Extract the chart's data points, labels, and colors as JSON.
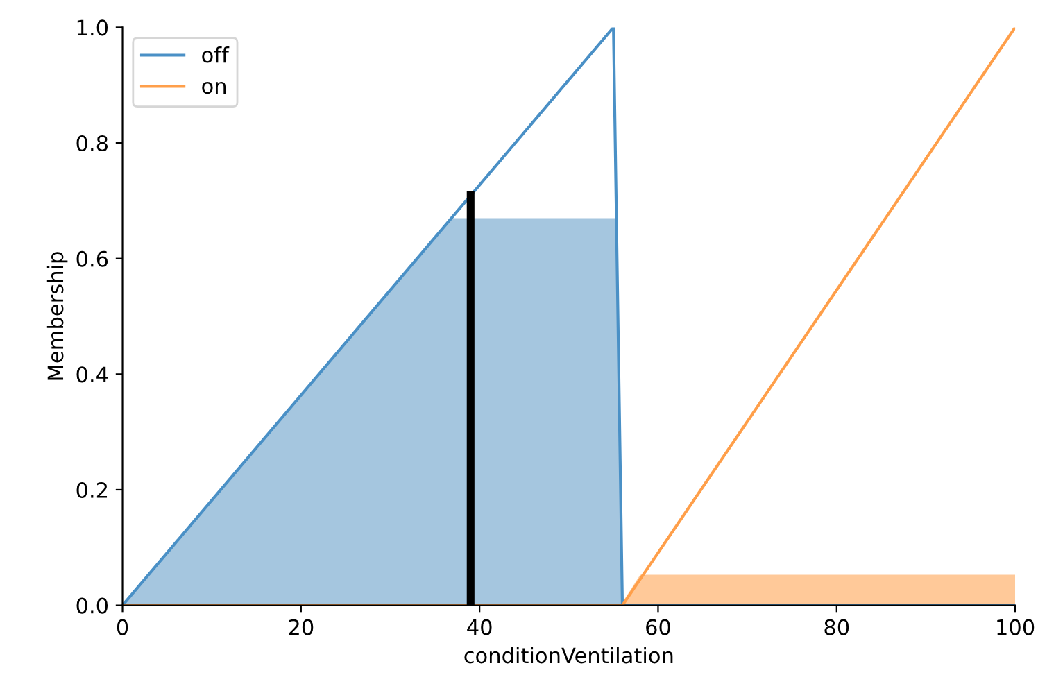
{
  "chart_data": {
    "type": "line",
    "xlabel": "conditionVentilation",
    "ylabel": "Membership",
    "xlim": [
      0,
      100
    ],
    "ylim": [
      0,
      1.0
    ],
    "xticks": [
      0,
      20,
      40,
      60,
      80,
      100
    ],
    "yticks": [
      {
        "value": 0,
        "label": "0.0"
      },
      {
        "value": 0.2,
        "label": "0.2"
      },
      {
        "value": 0.4,
        "label": "0.4"
      },
      {
        "value": 0.6,
        "label": "0.6"
      },
      {
        "value": 0.8,
        "label": "0.8"
      },
      {
        "value": 1.0,
        "label": "1.0"
      }
    ],
    "grid": false,
    "legend": "top left",
    "series": [
      {
        "type": "area",
        "color": "#a5c6df",
        "x": [
          0,
          36.7,
          55.3,
          56
        ],
        "values": [
          0,
          0.67,
          0.67,
          0
        ]
      },
      {
        "type": "area",
        "color": "#ffc999",
        "x": [
          55.8,
          58,
          100
        ],
        "values": [
          0,
          0.053,
          0.053
        ]
      },
      {
        "name": "off",
        "color": "#4a90c6",
        "x": [
          0,
          55,
          56,
          100
        ],
        "values": [
          0,
          1.0,
          0,
          0
        ]
      },
      {
        "name": "on",
        "color": "#ff9f4a",
        "x": [
          0,
          56,
          100
        ],
        "values": [
          0,
          0,
          1.0
        ]
      },
      {
        "color": "#000000",
        "x": [
          39,
          39
        ],
        "values": [
          0,
          0.71
        ]
      }
    ]
  }
}
